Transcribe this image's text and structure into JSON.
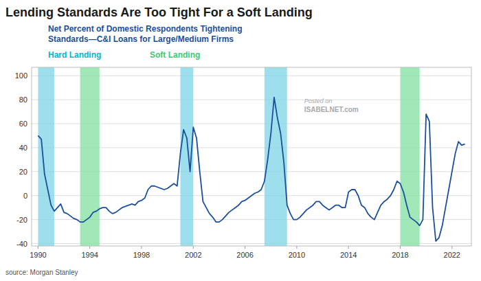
{
  "chart_data": {
    "type": "line",
    "title": "Lending Standards Are Too Tight For a Soft Landing",
    "subtitle": [
      "Net Percent of Domestic Respondents Tightening",
      "Standards—C&I Loans for Large/Medium Firms"
    ],
    "annotations": [
      "source: Morgan Stanley",
      "Posted on",
      "ISABELNET.com"
    ],
    "regions": [
      {
        "name": "Hard Landing",
        "color": "#7DD4E8",
        "label_color": "#00B8CC",
        "spans": [
          [
            1990.0,
            1991.25
          ],
          [
            2001.0,
            2002.0
          ],
          [
            2007.5,
            2009.25
          ]
        ]
      },
      {
        "name": "Soft Landing",
        "color": "#82E0A0",
        "label_color": "#3DC878",
        "spans": [
          [
            1993.25,
            1994.75
          ],
          [
            2018.0,
            2019.5
          ]
        ]
      }
    ],
    "x": [
      1990.0,
      1990.25,
      1990.5,
      1990.75,
      1991.0,
      1991.25,
      1991.5,
      1991.75,
      1992.0,
      1992.25,
      1992.5,
      1992.75,
      1993.0,
      1993.25,
      1993.5,
      1993.75,
      1994.0,
      1994.25,
      1994.5,
      1994.75,
      1995.0,
      1995.25,
      1995.5,
      1995.75,
      1996.0,
      1996.25,
      1996.5,
      1996.75,
      1997.0,
      1997.25,
      1997.5,
      1997.75,
      1998.0,
      1998.25,
      1998.5,
      1998.75,
      1999.0,
      1999.25,
      1999.5,
      1999.75,
      2000.0,
      2000.25,
      2000.5,
      2000.75,
      2001.0,
      2001.25,
      2001.5,
      2001.75,
      2002.0,
      2002.25,
      2002.5,
      2002.75,
      2003.0,
      2003.25,
      2003.5,
      2003.75,
      2004.0,
      2004.25,
      2004.5,
      2004.75,
      2005.0,
      2005.25,
      2005.5,
      2005.75,
      2006.0,
      2006.25,
      2006.5,
      2006.75,
      2007.0,
      2007.25,
      2007.5,
      2007.75,
      2008.0,
      2008.25,
      2008.5,
      2008.75,
      2009.0,
      2009.25,
      2009.5,
      2009.75,
      2010.0,
      2010.25,
      2010.5,
      2010.75,
      2011.0,
      2011.25,
      2011.5,
      2011.75,
      2012.0,
      2012.25,
      2012.5,
      2012.75,
      2013.0,
      2013.25,
      2013.5,
      2013.75,
      2014.0,
      2014.25,
      2014.5,
      2014.75,
      2015.0,
      2015.25,
      2015.5,
      2015.75,
      2016.0,
      2016.25,
      2016.5,
      2016.75,
      2017.0,
      2017.25,
      2017.5,
      2017.75,
      2018.0,
      2018.25,
      2018.5,
      2018.75,
      2019.0,
      2019.25,
      2019.5,
      2019.75,
      2020.0,
      2020.25,
      2020.5,
      2020.75,
      2021.0,
      2021.25,
      2021.5,
      2021.75,
      2022.0,
      2022.25,
      2022.5,
      2022.75,
      2023.0
    ],
    "series": [
      {
        "color": "#1B4F9B",
        "values": [
          50,
          47,
          18,
          5,
          -8,
          -13,
          -10,
          -7,
          -14,
          -15,
          -17,
          -19,
          -20,
          -22,
          -22,
          -20,
          -18,
          -14,
          -13,
          -11,
          -10,
          -10,
          -13,
          -15,
          -14,
          -12,
          -10,
          -9,
          -8,
          -7,
          -8,
          -5,
          -4,
          -2,
          5,
          8,
          8,
          7,
          6,
          5,
          6,
          8,
          10,
          8,
          35,
          55,
          48,
          20,
          57,
          48,
          20,
          -5,
          -10,
          -15,
          -18,
          -22,
          -22,
          -20,
          -17,
          -14,
          -12,
          -10,
          -8,
          -5,
          -4,
          -2,
          0,
          2,
          3,
          5,
          12,
          30,
          52,
          82,
          65,
          52,
          28,
          -8,
          -15,
          -20,
          -20,
          -18,
          -15,
          -12,
          -10,
          -8,
          -5,
          -5,
          -8,
          -10,
          -12,
          -10,
          -8,
          -8,
          -10,
          -10,
          3,
          5,
          5,
          0,
          -8,
          -10,
          -15,
          -18,
          -20,
          -14,
          -8,
          -5,
          -3,
          0,
          5,
          12,
          10,
          3,
          -8,
          -18,
          -20,
          -22,
          -25,
          -20,
          68,
          62,
          -10,
          -38,
          -35,
          -25,
          -10,
          5,
          20,
          35,
          45,
          42,
          43
        ]
      }
    ],
    "xlim": [
      1989.5,
      2023.5
    ],
    "xticks": [
      1990,
      1994,
      1998,
      2002,
      2006,
      2010,
      2014,
      2018,
      2022
    ],
    "ylim": [
      -42,
      107
    ],
    "yticks": [
      -40,
      -20,
      0,
      20,
      40,
      60,
      80,
      100
    ],
    "grid": "y"
  }
}
